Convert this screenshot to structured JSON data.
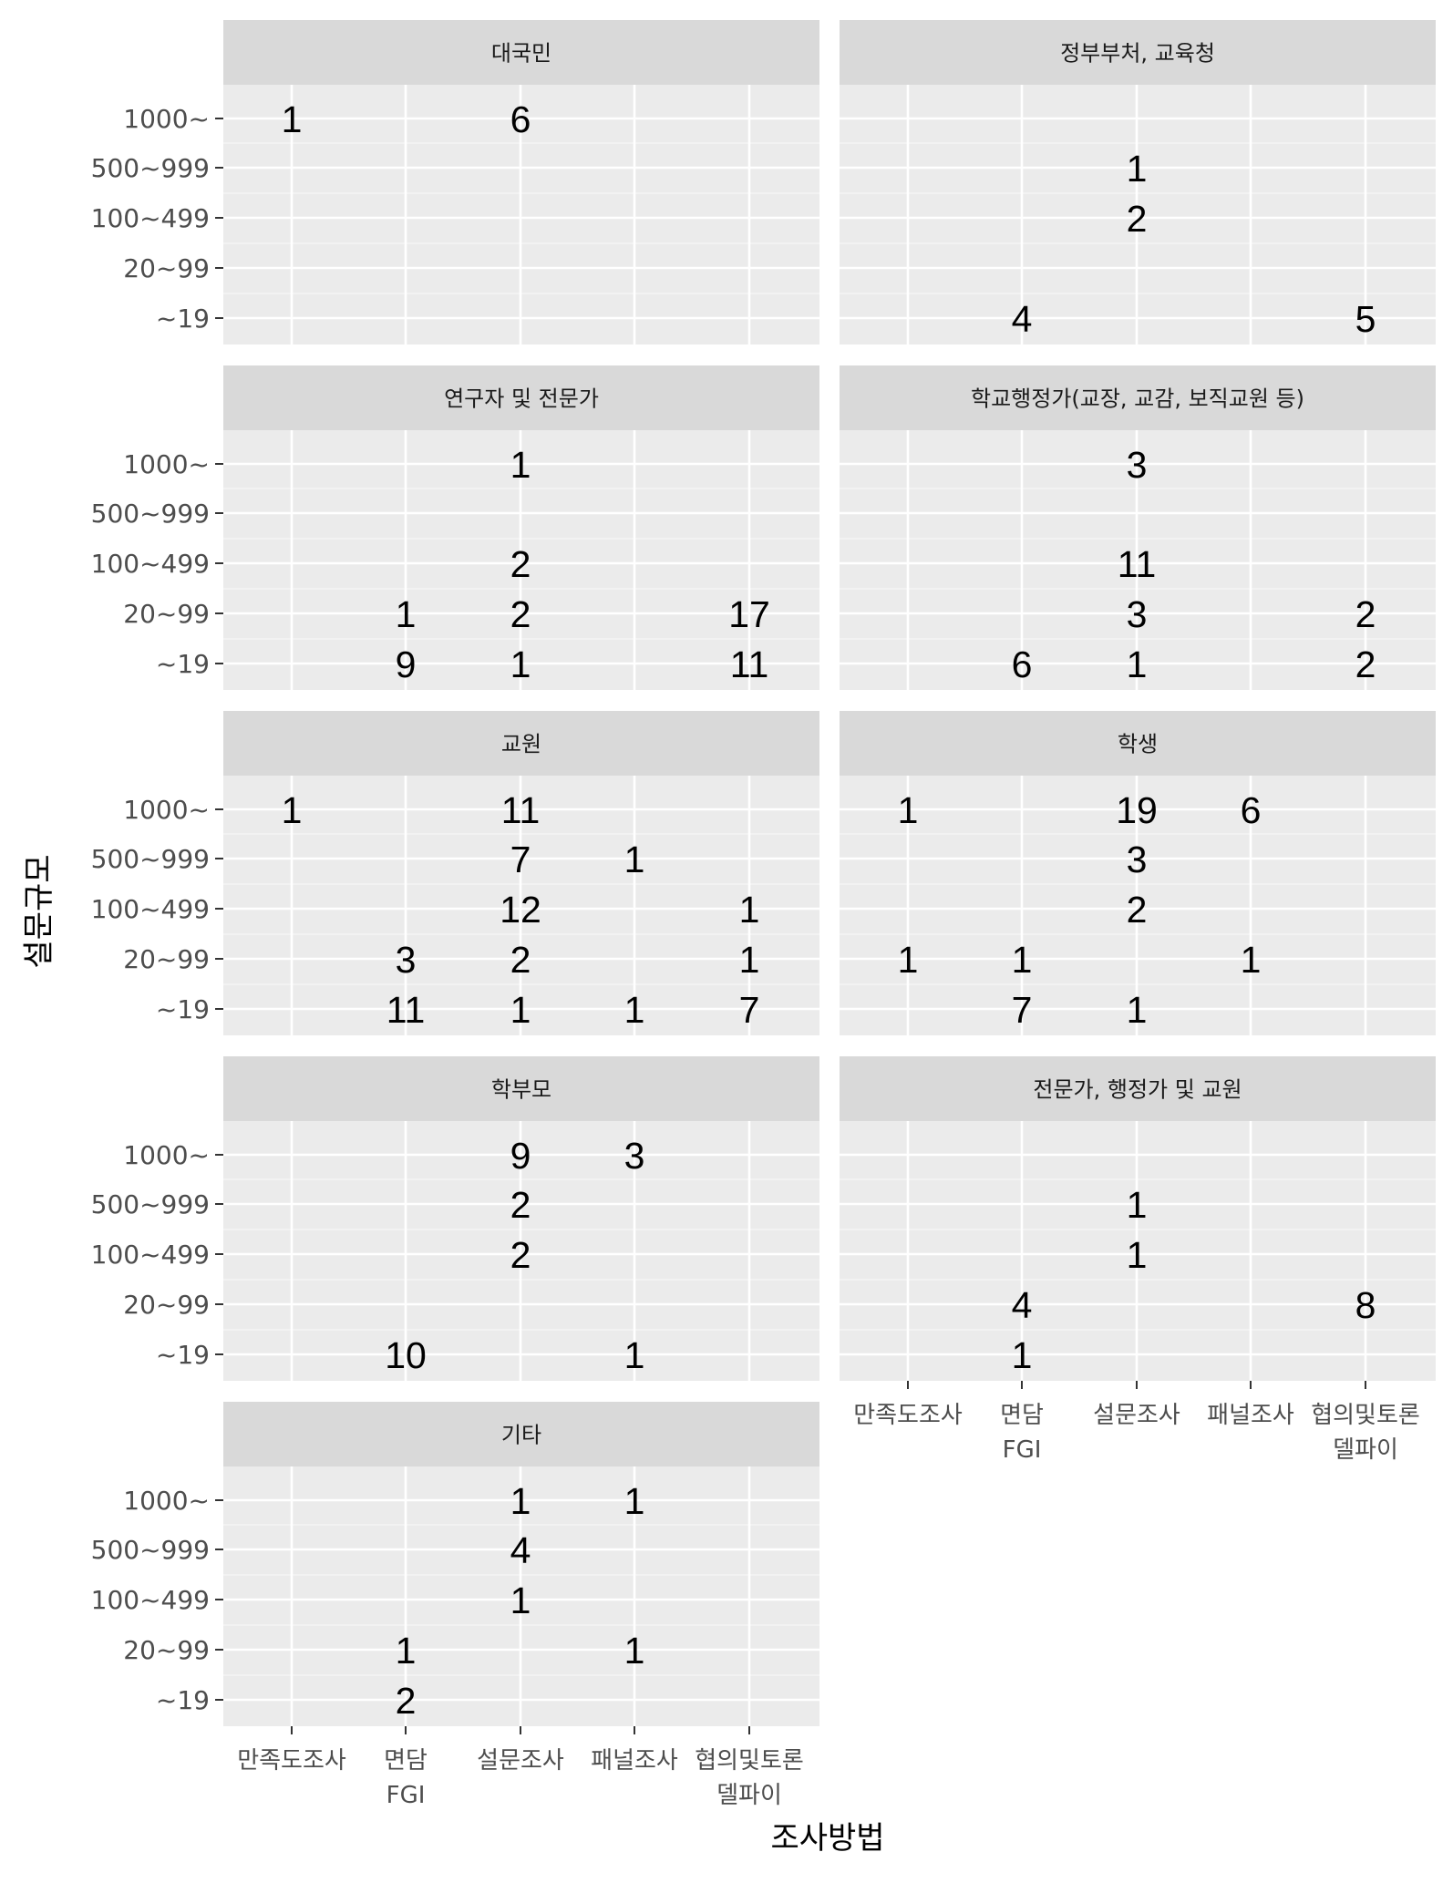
{
  "chart_data": {
    "type": "faceted-text-grid",
    "xlabel": "조사방법",
    "ylabel": "설문규모",
    "x_categories": [
      "만족도조사",
      "면담\nFGI",
      "설문조사",
      "패널조사",
      "협의및토론\n델파이"
    ],
    "y_categories": [
      "~19",
      "20~99",
      "100~499",
      "500~999",
      "1000~"
    ],
    "grid": true,
    "facets": [
      {
        "title": "대국민",
        "points": [
          {
            "x": "만족도조사",
            "y": "1000~",
            "value": 1
          },
          {
            "x": "설문조사",
            "y": "1000~",
            "value": 6
          }
        ]
      },
      {
        "title": "정부부처, 교육청",
        "points": [
          {
            "x": "설문조사",
            "y": "500~999",
            "value": 1
          },
          {
            "x": "설문조사",
            "y": "100~499",
            "value": 2
          },
          {
            "x": "면담\nFGI",
            "y": "~19",
            "value": 4
          },
          {
            "x": "협의및토론\n델파이",
            "y": "~19",
            "value": 5
          }
        ]
      },
      {
        "title": "연구자 및 전문가",
        "points": [
          {
            "x": "설문조사",
            "y": "1000~",
            "value": 1
          },
          {
            "x": "설문조사",
            "y": "100~499",
            "value": 2
          },
          {
            "x": "면담\nFGI",
            "y": "20~99",
            "value": 1
          },
          {
            "x": "설문조사",
            "y": "20~99",
            "value": 2
          },
          {
            "x": "협의및토론\n델파이",
            "y": "20~99",
            "value": 17
          },
          {
            "x": "면담\nFGI",
            "y": "~19",
            "value": 9
          },
          {
            "x": "설문조사",
            "y": "~19",
            "value": 1
          },
          {
            "x": "협의및토론\n델파이",
            "y": "~19",
            "value": 11
          }
        ]
      },
      {
        "title": "학교행정가(교장, 교감, 보직교원 등)",
        "points": [
          {
            "x": "설문조사",
            "y": "1000~",
            "value": 3
          },
          {
            "x": "설문조사",
            "y": "100~499",
            "value": 11
          },
          {
            "x": "설문조사",
            "y": "20~99",
            "value": 3
          },
          {
            "x": "협의및토론\n델파이",
            "y": "20~99",
            "value": 2
          },
          {
            "x": "면담\nFGI",
            "y": "~19",
            "value": 6
          },
          {
            "x": "설문조사",
            "y": "~19",
            "value": 1
          },
          {
            "x": "협의및토론\n델파이",
            "y": "~19",
            "value": 2
          }
        ]
      },
      {
        "title": "교원",
        "points": [
          {
            "x": "만족도조사",
            "y": "1000~",
            "value": 1
          },
          {
            "x": "설문조사",
            "y": "1000~",
            "value": 11
          },
          {
            "x": "설문조사",
            "y": "500~999",
            "value": 7
          },
          {
            "x": "패널조사",
            "y": "500~999",
            "value": 1
          },
          {
            "x": "설문조사",
            "y": "100~499",
            "value": 12
          },
          {
            "x": "협의및토론\n델파이",
            "y": "100~499",
            "value": 1
          },
          {
            "x": "면담\nFGI",
            "y": "20~99",
            "value": 3
          },
          {
            "x": "설문조사",
            "y": "20~99",
            "value": 2
          },
          {
            "x": "협의및토론\n델파이",
            "y": "20~99",
            "value": 1
          },
          {
            "x": "면담\nFGI",
            "y": "~19",
            "value": 11
          },
          {
            "x": "설문조사",
            "y": "~19",
            "value": 1
          },
          {
            "x": "패널조사",
            "y": "~19",
            "value": 1
          },
          {
            "x": "협의및토론\n델파이",
            "y": "~19",
            "value": 7
          }
        ]
      },
      {
        "title": "학생",
        "points": [
          {
            "x": "만족도조사",
            "y": "1000~",
            "value": 1
          },
          {
            "x": "설문조사",
            "y": "1000~",
            "value": 19
          },
          {
            "x": "패널조사",
            "y": "1000~",
            "value": 6
          },
          {
            "x": "설문조사",
            "y": "500~999",
            "value": 3
          },
          {
            "x": "설문조사",
            "y": "100~499",
            "value": 2
          },
          {
            "x": "만족도조사",
            "y": "20~99",
            "value": 1
          },
          {
            "x": "면담\nFGI",
            "y": "20~99",
            "value": 1
          },
          {
            "x": "패널조사",
            "y": "20~99",
            "value": 1
          },
          {
            "x": "면담\nFGI",
            "y": "~19",
            "value": 7
          },
          {
            "x": "설문조사",
            "y": "~19",
            "value": 1
          }
        ]
      },
      {
        "title": "학부모",
        "points": [
          {
            "x": "설문조사",
            "y": "1000~",
            "value": 9
          },
          {
            "x": "패널조사",
            "y": "1000~",
            "value": 3
          },
          {
            "x": "설문조사",
            "y": "500~999",
            "value": 2
          },
          {
            "x": "설문조사",
            "y": "100~499",
            "value": 2
          },
          {
            "x": "면담\nFGI",
            "y": "~19",
            "value": 10
          },
          {
            "x": "패널조사",
            "y": "~19",
            "value": 1
          }
        ]
      },
      {
        "title": "전문가, 행정가 및 교원",
        "points": [
          {
            "x": "설문조사",
            "y": "500~999",
            "value": 1
          },
          {
            "x": "설문조사",
            "y": "100~499",
            "value": 1
          },
          {
            "x": "면담\nFGI",
            "y": "20~99",
            "value": 4
          },
          {
            "x": "협의및토론\n델파이",
            "y": "20~99",
            "value": 8
          },
          {
            "x": "면담\nFGI",
            "y": "~19",
            "value": 1
          }
        ]
      },
      {
        "title": "기타",
        "points": [
          {
            "x": "설문조사",
            "y": "1000~",
            "value": 1
          },
          {
            "x": "패널조사",
            "y": "1000~",
            "value": 1
          },
          {
            "x": "설문조사",
            "y": "500~999",
            "value": 4
          },
          {
            "x": "설문조사",
            "y": "100~499",
            "value": 1
          },
          {
            "x": "면담\nFGI",
            "y": "20~99",
            "value": 1
          },
          {
            "x": "패널조사",
            "y": "20~99",
            "value": 1
          },
          {
            "x": "면담\nFGI",
            "y": "~19",
            "value": 2
          }
        ]
      }
    ]
  }
}
